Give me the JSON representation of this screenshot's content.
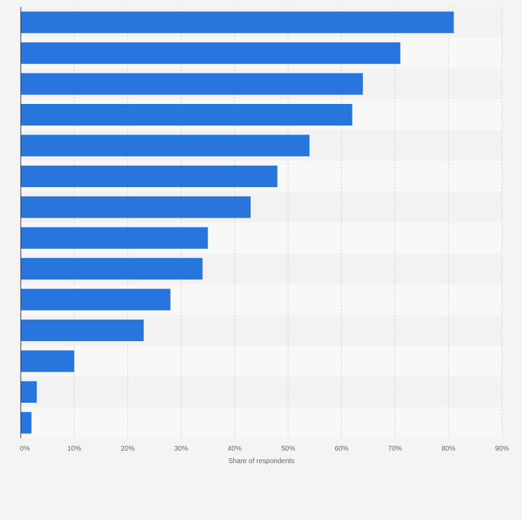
{
  "chart_data": {
    "type": "bar",
    "orientation": "horizontal",
    "title": "",
    "xlabel": "Share of respondents",
    "ylabel": "",
    "categories": [
      "",
      "",
      "",
      "",
      "",
      "",
      "",
      "",
      "",
      "",
      "",
      "",
      "",
      ""
    ],
    "values": [
      81,
      71,
      64,
      62,
      54,
      48,
      43,
      35,
      34,
      28,
      23,
      10,
      3,
      2
    ],
    "xlim": [
      0,
      90
    ],
    "ticks": [
      0,
      10,
      20,
      30,
      40,
      50,
      60,
      70,
      80,
      90
    ],
    "tick_labels": [
      "0%",
      "10%",
      "20%",
      "30%",
      "40%",
      "50%",
      "60%",
      "70%",
      "80%",
      "90%"
    ],
    "grid": true,
    "bar_color": "#2876dd",
    "band_colors": [
      "#f2f2f2",
      "#f8f8f8"
    ]
  }
}
